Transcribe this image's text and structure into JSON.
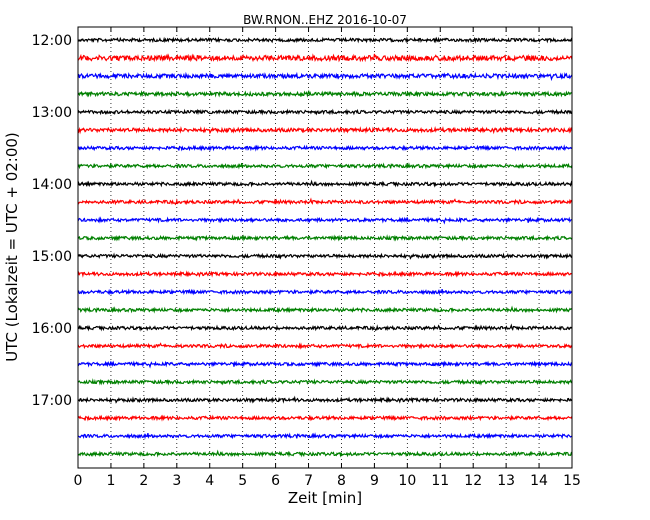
{
  "chart_data": {
    "type": "line",
    "title": "BW.RNON..EHZ 2016-10-07",
    "xlabel": "Zeit  [min]",
    "ylabel": "UTC (Lokalzeit = UTC + 02:00)",
    "xlim": [
      0,
      15
    ],
    "x_ticks": [
      "0",
      "1",
      "2",
      "3",
      "4",
      "5",
      "6",
      "7",
      "8",
      "9",
      "10",
      "11",
      "12",
      "13",
      "14",
      "15"
    ],
    "y_ticks": [
      "12:00",
      "13:00",
      "14:00",
      "15:00",
      "16:00",
      "17:00"
    ],
    "grid": true,
    "trace_colors": [
      "#000000",
      "#ff0000",
      "#0000ff",
      "#008000"
    ],
    "traces": [
      {
        "start": "12:00",
        "amplitude": 0.3
      },
      {
        "start": "12:15",
        "amplitude": 0.5
      },
      {
        "start": "12:30",
        "amplitude": 0.4
      },
      {
        "start": "12:45",
        "amplitude": 0.35
      },
      {
        "start": "13:00",
        "amplitude": 0.3
      },
      {
        "start": "13:15",
        "amplitude": 0.35
      },
      {
        "start": "13:30",
        "amplitude": 0.3
      },
      {
        "start": "13:45",
        "amplitude": 0.3
      },
      {
        "start": "14:00",
        "amplitude": 0.3
      },
      {
        "start": "14:15",
        "amplitude": 0.3
      },
      {
        "start": "14:30",
        "amplitude": 0.3
      },
      {
        "start": "14:45",
        "amplitude": 0.3
      },
      {
        "start": "15:00",
        "amplitude": 0.3
      },
      {
        "start": "15:15",
        "amplitude": 0.3
      },
      {
        "start": "15:30",
        "amplitude": 0.3
      },
      {
        "start": "15:45",
        "amplitude": 0.3
      },
      {
        "start": "16:00",
        "amplitude": 0.3
      },
      {
        "start": "16:15",
        "amplitude": 0.3
      },
      {
        "start": "16:30",
        "amplitude": 0.3
      },
      {
        "start": "16:45",
        "amplitude": 0.3
      },
      {
        "start": "17:00",
        "amplitude": 0.3
      },
      {
        "start": "17:15",
        "amplitude": 0.3
      },
      {
        "start": "17:30",
        "amplitude": 0.3
      },
      {
        "start": "17:45",
        "amplitude": 0.3
      }
    ]
  }
}
